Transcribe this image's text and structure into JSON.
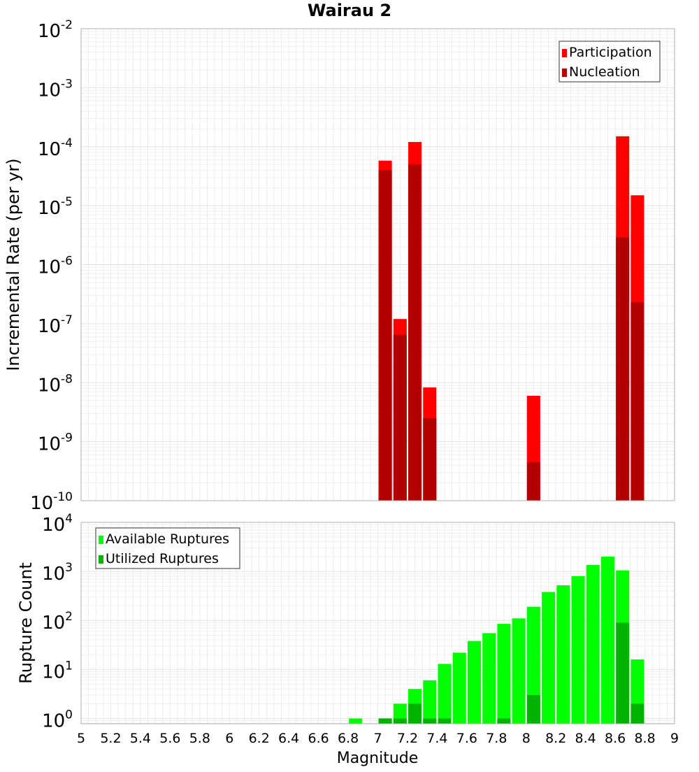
{
  "chart_data": [
    {
      "type": "bar",
      "title": "Wairau 2",
      "xlabel": "",
      "ylabel": "Incremental Rate (per yr)",
      "xlim": [
        5,
        9
      ],
      "ylim": [
        1e-10,
        0.01
      ],
      "yscale": "log",
      "grid": true,
      "legend_position": "top-right",
      "ytick_exponents": [
        "-10",
        "-9",
        "-8",
        "-7",
        "-6",
        "-5",
        "-4",
        "-3",
        "-2"
      ],
      "ytick_base": "10",
      "series": [
        {
          "name": "Participation",
          "color": "#ff0000",
          "x": [
            7.05,
            7.15,
            7.25,
            7.35,
            8.05,
            8.65,
            8.75
          ],
          "values": [
            5.8e-05,
            1.2e-07,
            0.00012,
            8.3e-09,
            6e-09,
            0.00015,
            1.5e-05
          ]
        },
        {
          "name": "Nucleation",
          "color": "#b30000",
          "x": [
            7.05,
            7.15,
            7.25,
            7.35,
            8.05,
            8.65,
            8.75
          ],
          "values": [
            4e-05,
            6.5e-08,
            5e-05,
            2.5e-09,
            4.5e-10,
            2.9e-06,
            2.3e-07
          ]
        }
      ]
    },
    {
      "type": "bar",
      "title": "",
      "xlabel": "Magnitude",
      "ylabel": "Rupture Count",
      "xlim": [
        5,
        9
      ],
      "ylim": [
        0.78,
        10000
      ],
      "yscale": "log",
      "grid": true,
      "legend_position": "top-left",
      "ytick_exponents": [
        "0",
        "1",
        "2",
        "3",
        "4"
      ],
      "ytick_base": "10",
      "xtick_labels": [
        "5",
        "5.2",
        "5.4",
        "5.6",
        "5.8",
        "6",
        "6.2",
        "6.4",
        "6.6",
        "6.8",
        "7",
        "7.2",
        "7.4",
        "7.6",
        "7.8",
        "8",
        "8.2",
        "8.4",
        "8.6",
        "8.8",
        "9"
      ],
      "series": [
        {
          "name": "Available Ruptures",
          "color": "#00ff00",
          "x": [
            6.85,
            7.05,
            7.15,
            7.25,
            7.35,
            7.45,
            7.55,
            7.65,
            7.75,
            7.85,
            7.95,
            8.05,
            8.15,
            8.25,
            8.35,
            8.45,
            8.55,
            8.65,
            8.75
          ],
          "values": [
            1,
            1,
            2,
            4,
            6,
            13,
            22,
            38,
            55,
            85,
            110,
            190,
            380,
            520,
            800,
            1350,
            2000,
            1050,
            16
          ]
        },
        {
          "name": "Utilized Ruptures",
          "color": "#00b300",
          "x": [
            7.05,
            7.15,
            7.25,
            7.35,
            7.45,
            7.85,
            8.05,
            8.65,
            8.75
          ],
          "values": [
            1,
            1,
            2,
            1,
            1,
            1,
            3,
            90,
            2
          ]
        }
      ]
    }
  ]
}
